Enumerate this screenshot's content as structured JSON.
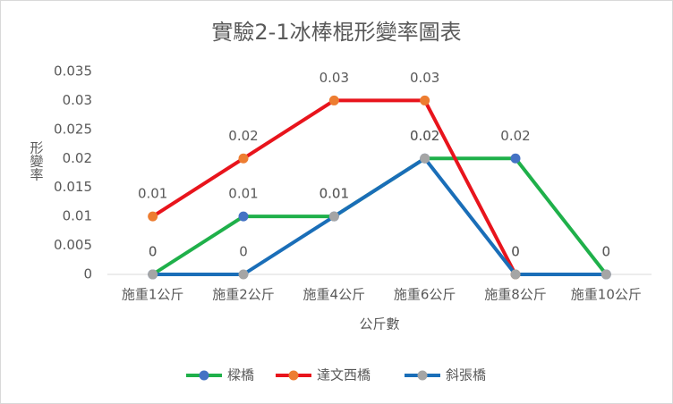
{
  "chart_data": {
    "type": "line",
    "title": "實驗2-1冰棒棍形變率圖表",
    "x_label": "公斤數",
    "y_label": "形變率",
    "categories": [
      "施重1公斤",
      "施重2公斤",
      "施重4公斤",
      "施重6公斤",
      "施重8公斤",
      "施重10公斤"
    ],
    "series": [
      {
        "name": "樑橋",
        "color": "#1fb04a",
        "marker_color": "#4472c4",
        "values": [
          0,
          0.01,
          0.01,
          0.02,
          0.02,
          0
        ]
      },
      {
        "name": "達文西橋",
        "color": "#e8141c",
        "marker_color": "#ed7d31",
        "values": [
          0.01,
          0.02,
          0.03,
          0.03,
          0,
          null
        ]
      },
      {
        "name": "斜張橋",
        "color": "#1a6eb8",
        "marker_color": "#a5a5a5",
        "values": [
          0,
          0,
          0.01,
          0.02,
          0,
          0
        ]
      }
    ],
    "ylim": [
      0,
      0.035
    ],
    "yticks": [
      0,
      0.005,
      0.01,
      0.015,
      0.02,
      0.025,
      0.03,
      0.035
    ],
    "grid": false,
    "legend": "bottom"
  }
}
